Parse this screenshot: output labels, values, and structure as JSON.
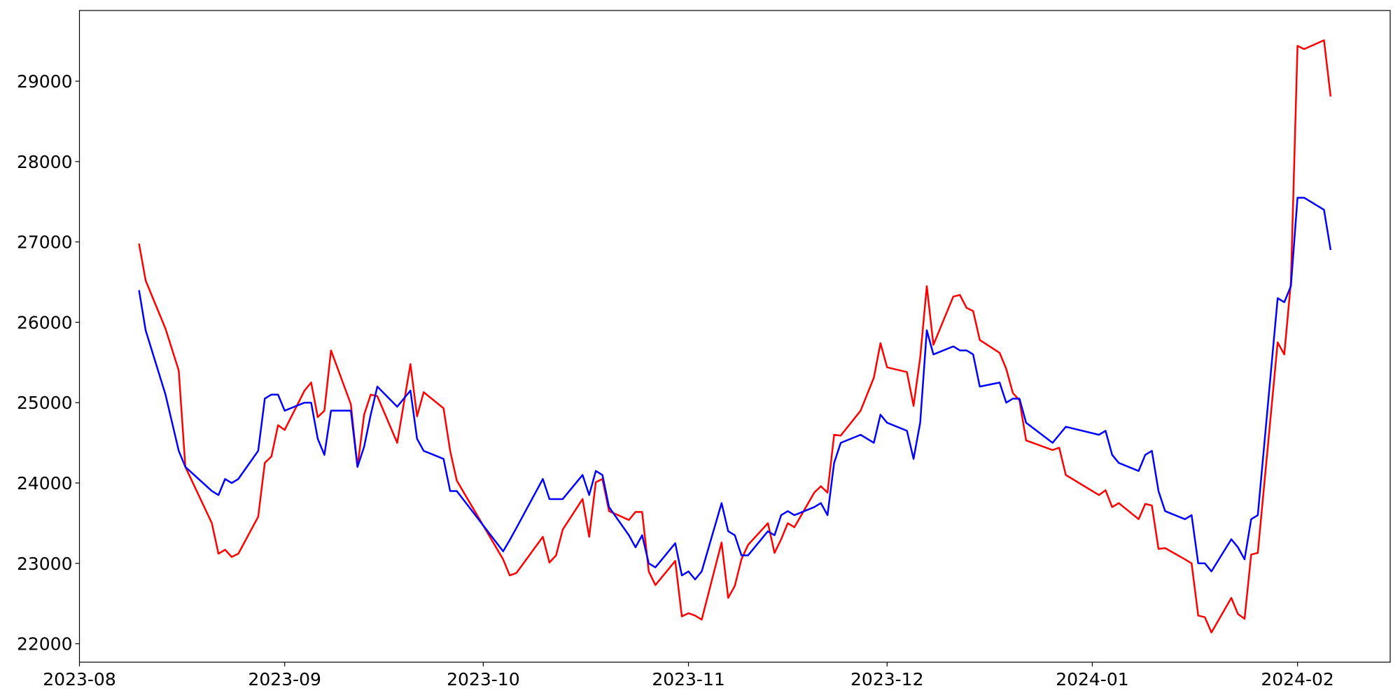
{
  "chart_data": {
    "type": "line",
    "x": [
      "2023-08-10",
      "2023-08-11",
      "2023-08-14",
      "2023-08-16",
      "2023-08-17",
      "2023-08-21",
      "2023-08-22",
      "2023-08-23",
      "2023-08-24",
      "2023-08-25",
      "2023-08-28",
      "2023-08-29",
      "2023-08-30",
      "2023-08-31",
      "2023-09-01",
      "2023-09-04",
      "2023-09-05",
      "2023-09-06",
      "2023-09-07",
      "2023-09-08",
      "2023-09-11",
      "2023-09-12",
      "2023-09-13",
      "2023-09-14",
      "2023-09-15",
      "2023-09-18",
      "2023-09-20",
      "2023-09-21",
      "2023-09-22",
      "2023-09-25",
      "2023-09-26",
      "2023-09-27",
      "2023-10-04",
      "2023-10-05",
      "2023-10-06",
      "2023-10-10",
      "2023-10-11",
      "2023-10-12",
      "2023-10-13",
      "2023-10-16",
      "2023-10-17",
      "2023-10-18",
      "2023-10-19",
      "2023-10-20",
      "2023-10-23",
      "2023-10-24",
      "2023-10-25",
      "2023-10-26",
      "2023-10-27",
      "2023-10-30",
      "2023-10-31",
      "2023-11-01",
      "2023-11-02",
      "2023-11-03",
      "2023-11-06",
      "2023-11-07",
      "2023-11-08",
      "2023-11-09",
      "2023-11-10",
      "2023-11-13",
      "2023-11-14",
      "2023-11-15",
      "2023-11-16",
      "2023-11-17",
      "2023-11-20",
      "2023-11-21",
      "2023-11-22",
      "2023-11-23",
      "2023-11-24",
      "2023-11-27",
      "2023-11-29",
      "2023-11-30",
      "2023-12-01",
      "2023-12-04",
      "2023-12-05",
      "2023-12-06",
      "2023-12-07",
      "2023-12-08",
      "2023-12-11",
      "2023-12-12",
      "2023-12-13",
      "2023-12-14",
      "2023-12-15",
      "2023-12-18",
      "2023-12-19",
      "2023-12-20",
      "2023-12-21",
      "2023-12-22",
      "2023-12-26",
      "2023-12-27",
      "2023-12-28",
      "2024-01-02",
      "2024-01-03",
      "2024-01-04",
      "2024-01-05",
      "2024-01-08",
      "2024-01-09",
      "2024-01-10",
      "2024-01-11",
      "2024-01-12",
      "2024-01-15",
      "2024-01-16",
      "2024-01-17",
      "2024-01-18",
      "2024-01-19",
      "2024-01-22",
      "2024-01-23",
      "2024-01-24",
      "2024-01-25",
      "2024-01-26",
      "2024-01-29",
      "2024-01-30",
      "2024-01-31",
      "2024-02-01",
      "2024-02-02",
      "2024-02-05",
      "2024-02-06"
    ],
    "series": [
      {
        "color": "red",
        "values": [
          26980,
          26520,
          25920,
          25400,
          24200,
          23500,
          23120,
          23170,
          23080,
          23120,
          23580,
          24250,
          24330,
          24720,
          24660,
          25150,
          25250,
          24820,
          24900,
          25650,
          24980,
          24200,
          24850,
          25100,
          25080,
          24500,
          25480,
          24830,
          25130,
          24930,
          24400,
          24030,
          23050,
          22850,
          22880,
          23330,
          23010,
          23100,
          23420,
          23800,
          23330,
          24010,
          24050,
          23650,
          23540,
          23640,
          23640,
          22900,
          22730,
          23030,
          22340,
          22380,
          22350,
          22300,
          23260,
          22570,
          22720,
          23050,
          23230,
          23500,
          23130,
          23300,
          23500,
          23450,
          23880,
          23960,
          23880,
          24600,
          24590,
          24900,
          25310,
          25740,
          25440,
          25380,
          24960,
          25560,
          26450,
          25720,
          26320,
          26340,
          26180,
          26140,
          25780,
          25620,
          25420,
          25120,
          25030,
          24530,
          24410,
          24440,
          24100,
          23850,
          23910,
          23700,
          23750,
          23550,
          23740,
          23720,
          23180,
          23190,
          23050,
          23000,
          22350,
          22330,
          22140,
          22570,
          22370,
          22310,
          23110,
          23130,
          25750,
          25600,
          26500,
          29440,
          29400,
          29510,
          28810
        ]
      },
      {
        "color": "blue",
        "values": [
          26400,
          25900,
          25100,
          24400,
          24200,
          23900,
          23850,
          24050,
          24000,
          24050,
          24400,
          25050,
          25100,
          25100,
          24900,
          25000,
          25000,
          24550,
          24350,
          24900,
          24900,
          24200,
          24450,
          24850,
          25200,
          24950,
          25150,
          24550,
          24400,
          24300,
          23900,
          23900,
          23150,
          23290,
          23440,
          24050,
          23800,
          23800,
          23800,
          24100,
          23850,
          24150,
          24100,
          23700,
          23350,
          23200,
          23350,
          23000,
          22950,
          23250,
          22850,
          22900,
          22800,
          22900,
          23750,
          23400,
          23350,
          23100,
          23100,
          23400,
          23350,
          23600,
          23650,
          23600,
          23700,
          23750,
          23600,
          24250,
          24500,
          24600,
          24500,
          24850,
          24750,
          24650,
          24300,
          24750,
          25900,
          25600,
          25700,
          25650,
          25650,
          25600,
          25200,
          25250,
          25000,
          25050,
          25050,
          24750,
          24500,
          24600,
          24700,
          24600,
          24650,
          24350,
          24250,
          24150,
          24350,
          24400,
          23900,
          23650,
          23550,
          23600,
          23000,
          23000,
          22900,
          23300,
          23200,
          23050,
          23550,
          23600,
          26300,
          26250,
          26450,
          27550,
          27550,
          27400,
          26900
        ]
      }
    ],
    "xlim": [
      "2023-08-01",
      "2024-02-15"
    ],
    "xticks": [
      {
        "value": "2023-08-01",
        "label": "2023-08"
      },
      {
        "value": "2023-09-01",
        "label": "2023-09"
      },
      {
        "value": "2023-10-01",
        "label": "2023-10"
      },
      {
        "value": "2023-11-01",
        "label": "2023-11"
      },
      {
        "value": "2023-12-01",
        "label": "2023-12"
      },
      {
        "value": "2024-01-01",
        "label": "2024-01"
      },
      {
        "value": "2024-02-01",
        "label": "2024-02"
      }
    ],
    "ylim": [
      21770,
      29880
    ],
    "yticks": [
      22000,
      23000,
      24000,
      25000,
      26000,
      27000,
      28000,
      29000
    ],
    "grid": false
  }
}
